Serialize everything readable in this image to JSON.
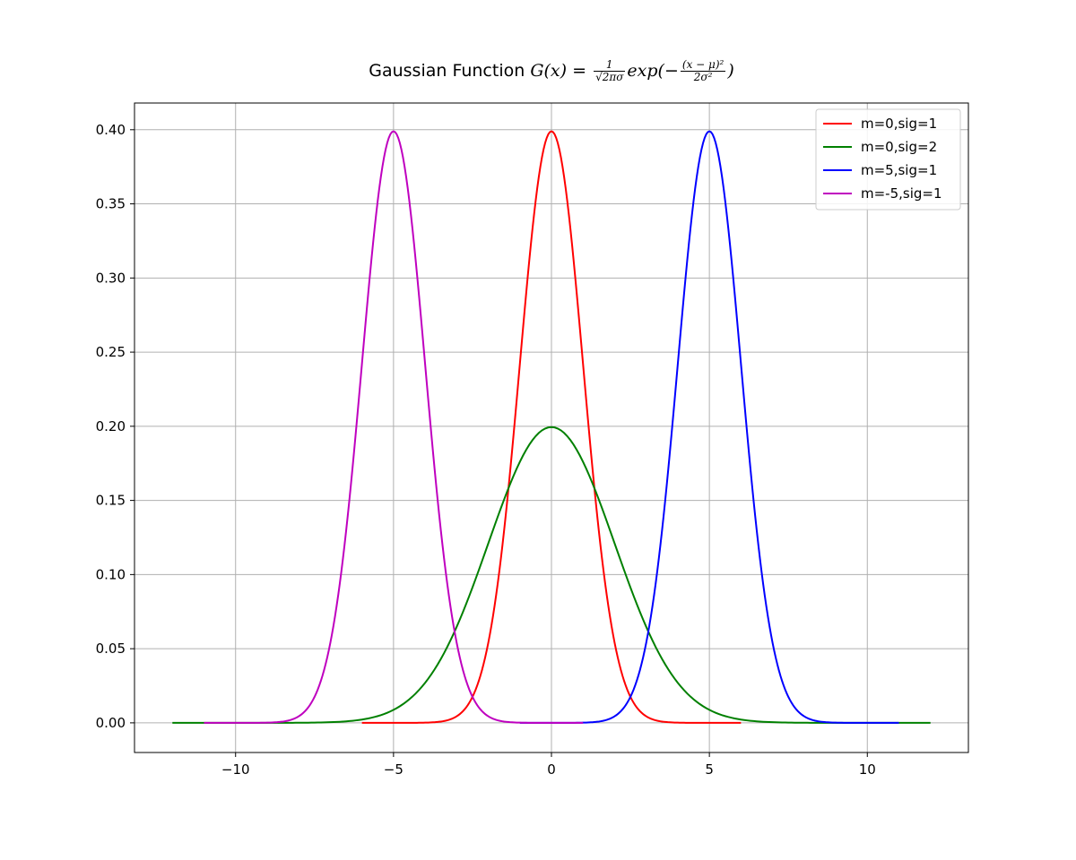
{
  "chart_data": {
    "type": "line",
    "title": {
      "prefix": "Gaussian Function",
      "lhs": "G(x) =",
      "frac1_num": "1",
      "frac1_den": "√2πσ",
      "exp_text": "exp(−",
      "frac2_num": "(x − μ)²",
      "frac2_den": "2σ²",
      "close": ")"
    },
    "xlabel": "",
    "ylabel": "",
    "xlim": [
      -13.2,
      13.2
    ],
    "ylim": [
      -0.02,
      0.418
    ],
    "grid": true,
    "legend_position": "top-right",
    "x_ticks": [
      -10,
      -5,
      0,
      5,
      10
    ],
    "x_tick_labels": [
      "−10",
      "−5",
      "0",
      "5",
      "10"
    ],
    "y_ticks": [
      0.0,
      0.05,
      0.1,
      0.15,
      0.2,
      0.25,
      0.3,
      0.35,
      0.4
    ],
    "y_tick_labels": [
      "0.00",
      "0.05",
      "0.10",
      "0.15",
      "0.20",
      "0.25",
      "0.30",
      "0.35",
      "0.40"
    ],
    "series": [
      {
        "name": "m=0,sig=1",
        "mu": 0,
        "sigma": 1,
        "x_range": [
          -6,
          6
        ],
        "color": "#ff0000"
      },
      {
        "name": "m=0,sig=2",
        "mu": 0,
        "sigma": 2,
        "x_range": [
          -12,
          12
        ],
        "color": "#008000"
      },
      {
        "name": "m=5,sig=1",
        "mu": 5,
        "sigma": 1,
        "x_range": [
          -1,
          11
        ],
        "color": "#0000ff"
      },
      {
        "name": "m=-5,sig=1",
        "mu": -5,
        "sigma": 1,
        "x_range": [
          -11,
          1
        ],
        "color": "#bf00bf"
      }
    ]
  }
}
